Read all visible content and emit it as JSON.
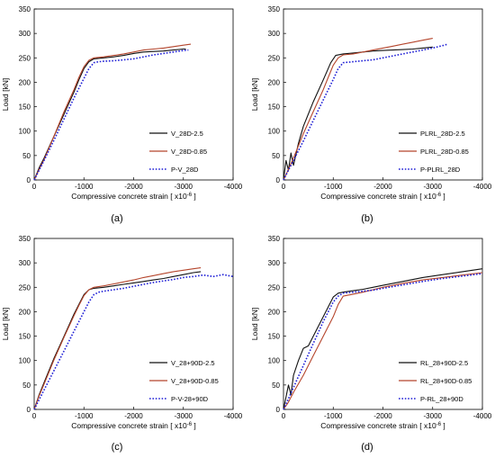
{
  "axes_common": {
    "xlabel": "Compressive concrete strain [ x10",
    "xlabel_sup": "-6",
    "xlabel_end": "]",
    "ylabel": "Load [kN]",
    "x_ticks": [
      0,
      -1000,
      -2000,
      -3000,
      -4000
    ],
    "x_tick_labels": [
      "0",
      "-1000",
      "-2000",
      "-3000",
      "-4000"
    ],
    "y_ticks": [
      0,
      50,
      100,
      150,
      200,
      250,
      300,
      350
    ],
    "y_tick_labels": [
      "0",
      "50",
      "100",
      "150",
      "200",
      "250",
      "300",
      "350"
    ],
    "xlim": [
      0,
      -4000
    ],
    "ylim": [
      0,
      350
    ],
    "grid": false,
    "legend_position": "lower-right"
  },
  "colors": {
    "black": "#111111",
    "brown": "#b5452c",
    "blue": "#1f1fd6"
  },
  "chart_data": [
    {
      "panel": "(a)",
      "type": "line",
      "series": [
        {
          "name": "V_28D-2.5",
          "style": "solid",
          "color": "black",
          "x": [
            0,
            -100,
            -200,
            -400,
            -600,
            -800,
            -900,
            -1000,
            -1100,
            -1200,
            -1400,
            -1600,
            -1800,
            -2000,
            -2200,
            -2400,
            -2600,
            -2800,
            -3000,
            -3050
          ],
          "y": [
            0,
            25,
            45,
            90,
            135,
            180,
            205,
            228,
            242,
            248,
            250,
            252,
            255,
            259,
            262,
            263,
            264,
            266,
            268,
            268
          ]
        },
        {
          "name": "V_28D-0.85",
          "style": "solid",
          "color": "brown",
          "x": [
            0,
            -100,
            -200,
            -400,
            -600,
            -800,
            -900,
            -1000,
            -1100,
            -1200,
            -1400,
            -1600,
            -1800,
            -2000,
            -2200,
            -2400,
            -2600,
            -2800,
            -3000,
            -3150
          ],
          "y": [
            0,
            22,
            42,
            90,
            140,
            185,
            210,
            232,
            245,
            250,
            252,
            255,
            258,
            262,
            266,
            268,
            270,
            273,
            276,
            278
          ]
        },
        {
          "name": "P-V_28D",
          "style": "dotted",
          "color": "blue",
          "x": [
            0,
            -200,
            -400,
            -600,
            -800,
            -1000,
            -1100,
            -1200,
            -1300,
            -1400,
            -1600,
            -1800,
            -2000,
            -2200,
            -2400,
            -2600,
            -2800,
            -3000,
            -3100
          ],
          "y": [
            0,
            40,
            82,
            125,
            168,
            208,
            228,
            240,
            242,
            243,
            244,
            246,
            248,
            252,
            256,
            259,
            262,
            265,
            266
          ]
        }
      ]
    },
    {
      "panel": "(b)",
      "type": "line",
      "series": [
        {
          "name": "PLRL_28D-2.5",
          "style": "solid",
          "color": "black",
          "x": [
            0,
            -50,
            -100,
            -150,
            -200,
            -300,
            -400,
            -600,
            -800,
            -950,
            -1050,
            -1200,
            -1400,
            -1600,
            -1800,
            -2000,
            -2200,
            -2400,
            -2600,
            -2800,
            -3000
          ],
          "y": [
            0,
            40,
            20,
            55,
            30,
            75,
            110,
            160,
            205,
            240,
            255,
            258,
            260,
            262,
            264,
            265,
            266,
            267,
            268,
            270,
            272
          ]
        },
        {
          "name": "PLRL_28D-0.85",
          "style": "solid",
          "color": "brown",
          "x": [
            0,
            -100,
            -200,
            -400,
            -600,
            -800,
            -900,
            -1000,
            -1100,
            -1200,
            -1400,
            -1600,
            -1800,
            -2000,
            -2200,
            -2400,
            -2600,
            -2800,
            -3000
          ],
          "y": [
            0,
            22,
            45,
            95,
            140,
            185,
            210,
            235,
            250,
            256,
            258,
            262,
            266,
            270,
            274,
            278,
            282,
            286,
            290
          ]
        },
        {
          "name": "P-PLRL_28D",
          "style": "dotted",
          "color": "blue",
          "x": [
            0,
            -100,
            -200,
            -400,
            -600,
            -800,
            -1000,
            -1100,
            -1200,
            -1400,
            -1600,
            -1800,
            -2000,
            -2200,
            -2400,
            -2600,
            -2800,
            -3000,
            -3200,
            -3300
          ],
          "y": [
            0,
            20,
            40,
            80,
            122,
            164,
            206,
            228,
            240,
            242,
            244,
            246,
            250,
            254,
            258,
            262,
            266,
            270,
            275,
            278
          ]
        }
      ]
    },
    {
      "panel": "(c)",
      "type": "line",
      "series": [
        {
          "name": "V_28+90D-2.5",
          "style": "solid",
          "color": "black",
          "x": [
            0,
            -100,
            -200,
            -400,
            -600,
            -800,
            -900,
            -1000,
            -1100,
            -1200,
            -1400,
            -1600,
            -1800,
            -2000,
            -2200,
            -2400,
            -2600,
            -2800,
            -3000,
            -3200,
            -3350
          ],
          "y": [
            0,
            30,
            55,
            105,
            150,
            195,
            215,
            235,
            245,
            248,
            250,
            253,
            256,
            259,
            262,
            265,
            268,
            272,
            276,
            280,
            282
          ]
        },
        {
          "name": "V_28+90D-0.85",
          "style": "solid",
          "color": "brown",
          "x": [
            0,
            -100,
            -200,
            -400,
            -600,
            -800,
            -900,
            -1000,
            -1100,
            -1200,
            -1400,
            -1600,
            -1800,
            -2000,
            -2200,
            -2400,
            -2600,
            -2800,
            -3000,
            -3200,
            -3350
          ],
          "y": [
            0,
            28,
            52,
            102,
            148,
            192,
            213,
            233,
            245,
            250,
            253,
            257,
            261,
            265,
            270,
            274,
            278,
            282,
            285,
            288,
            290
          ]
        },
        {
          "name": "P-V-28+90D",
          "style": "dotted",
          "color": "blue",
          "x": [
            0,
            -200,
            -400,
            -600,
            -800,
            -1000,
            -1100,
            -1200,
            -1300,
            -1400,
            -1600,
            -1800,
            -2000,
            -2200,
            -2400,
            -2600,
            -2800,
            -3000,
            -3200,
            -3400,
            -3600,
            -3800,
            -4000
          ],
          "y": [
            0,
            40,
            80,
            120,
            160,
            200,
            220,
            235,
            240,
            242,
            245,
            248,
            252,
            256,
            260,
            263,
            266,
            270,
            272,
            275,
            272,
            276,
            272
          ]
        }
      ]
    },
    {
      "panel": "(d)",
      "type": "line",
      "series": [
        {
          "name": "RL_28+90D-2.5",
          "style": "solid",
          "color": "black",
          "x": [
            0,
            -100,
            -150,
            -200,
            -300,
            -400,
            -500,
            -600,
            -800,
            -1000,
            -1100,
            -1200,
            -1400,
            -1600,
            -1800,
            -2000,
            -2400,
            -2800,
            -3200,
            -3600,
            -4000
          ],
          "y": [
            0,
            50,
            30,
            70,
            100,
            125,
            130,
            150,
            190,
            230,
            238,
            240,
            243,
            246,
            250,
            254,
            262,
            270,
            276,
            282,
            288
          ]
        },
        {
          "name": "RL_28+90D-0.85",
          "style": "solid",
          "color": "brown",
          "x": [
            0,
            -100,
            -200,
            -400,
            -600,
            -800,
            -1000,
            -1100,
            -1200,
            -1400,
            -1600,
            -1800,
            -2000,
            -2400,
            -2800,
            -3200,
            -3600,
            -4000
          ],
          "y": [
            0,
            15,
            35,
            70,
            110,
            150,
            190,
            215,
            232,
            236,
            240,
            245,
            250,
            258,
            265,
            270,
            275,
            280
          ]
        },
        {
          "name": "P-RL_28+90D",
          "style": "dotted",
          "color": "blue",
          "x": [
            0,
            -100,
            -200,
            -400,
            -600,
            -800,
            -1000,
            -1100,
            -1200,
            -1400,
            -1600,
            -1800,
            -2000,
            -2400,
            -2800,
            -3200,
            -3600,
            -4000
          ],
          "y": [
            0,
            22,
            45,
            90,
            135,
            180,
            220,
            232,
            238,
            240,
            242,
            244,
            248,
            255,
            262,
            268,
            273,
            278
          ]
        }
      ]
    }
  ]
}
